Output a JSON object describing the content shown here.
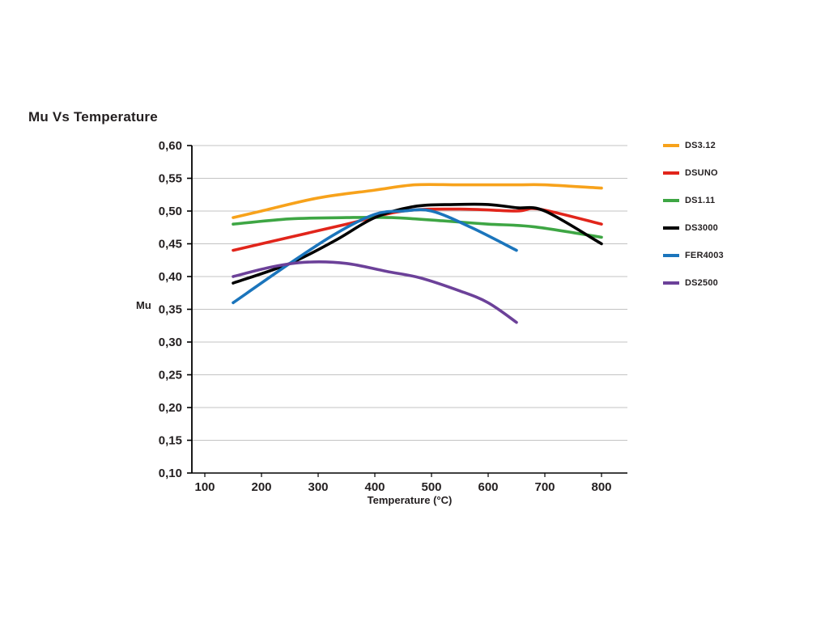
{
  "chart_data": {
    "type": "line",
    "title": "Mu Vs Temperature",
    "xlabel": "Temperature (°C)",
    "ylabel": "Mu",
    "xlim": [
      100,
      800
    ],
    "ylim": [
      0.1,
      0.6
    ],
    "grid": true,
    "legend_position": "right",
    "decimal_separator": ",",
    "x_ticks": [
      100,
      200,
      300,
      400,
      500,
      600,
      700,
      800
    ],
    "x_tick_labels": [
      "100",
      "200",
      "300",
      "400",
      "500",
      "600",
      "700",
      "800"
    ],
    "y_ticks": [
      0.1,
      0.15,
      0.2,
      0.25,
      0.3,
      0.35,
      0.4,
      0.45,
      0.5,
      0.55,
      0.6
    ],
    "y_tick_labels": [
      "0,10",
      "0,15",
      "0,20",
      "0,25",
      "0,30",
      "0,35",
      "0,40",
      "0,45",
      "0,50",
      "0,55",
      "0,60"
    ],
    "axis_color": "#000000",
    "grid_color": "#c3c3c3",
    "series": [
      {
        "name": "DS3.12",
        "color": "#F7A21B",
        "points": [
          [
            150,
            0.49
          ],
          [
            200,
            0.5
          ],
          [
            300,
            0.52
          ],
          [
            400,
            0.532
          ],
          [
            470,
            0.54
          ],
          [
            550,
            0.54
          ],
          [
            650,
            0.54
          ],
          [
            700,
            0.54
          ],
          [
            800,
            0.535
          ]
        ]
      },
      {
        "name": "DSUNO",
        "color": "#E1251B",
        "points": [
          [
            150,
            0.44
          ],
          [
            250,
            0.46
          ],
          [
            350,
            0.48
          ],
          [
            450,
            0.5
          ],
          [
            550,
            0.503
          ],
          [
            650,
            0.5
          ],
          [
            690,
            0.503
          ],
          [
            800,
            0.48
          ]
        ]
      },
      {
        "name": "DS1.11",
        "color": "#3EA644",
        "points": [
          [
            150,
            0.48
          ],
          [
            250,
            0.488
          ],
          [
            350,
            0.49
          ],
          [
            430,
            0.49
          ],
          [
            520,
            0.485
          ],
          [
            600,
            0.48
          ],
          [
            680,
            0.476
          ],
          [
            800,
            0.46
          ]
        ]
      },
      {
        "name": "DS3000",
        "color": "#000000",
        "points": [
          [
            150,
            0.39
          ],
          [
            250,
            0.42
          ],
          [
            330,
            0.455
          ],
          [
            400,
            0.49
          ],
          [
            470,
            0.507
          ],
          [
            540,
            0.51
          ],
          [
            600,
            0.51
          ],
          [
            650,
            0.505
          ],
          [
            700,
            0.5
          ],
          [
            800,
            0.45
          ]
        ]
      },
      {
        "name": "FER4003",
        "color": "#1B75BC",
        "points": [
          [
            150,
            0.36
          ],
          [
            250,
            0.42
          ],
          [
            330,
            0.465
          ],
          [
            400,
            0.495
          ],
          [
            450,
            0.5
          ],
          [
            500,
            0.5
          ],
          [
            570,
            0.475
          ],
          [
            650,
            0.44
          ]
        ]
      },
      {
        "name": "DS2500",
        "color": "#6C4199",
        "points": [
          [
            150,
            0.4
          ],
          [
            220,
            0.415
          ],
          [
            280,
            0.422
          ],
          [
            350,
            0.42
          ],
          [
            420,
            0.408
          ],
          [
            480,
            0.398
          ],
          [
            550,
            0.378
          ],
          [
            600,
            0.36
          ],
          [
            650,
            0.33
          ]
        ]
      }
    ]
  }
}
